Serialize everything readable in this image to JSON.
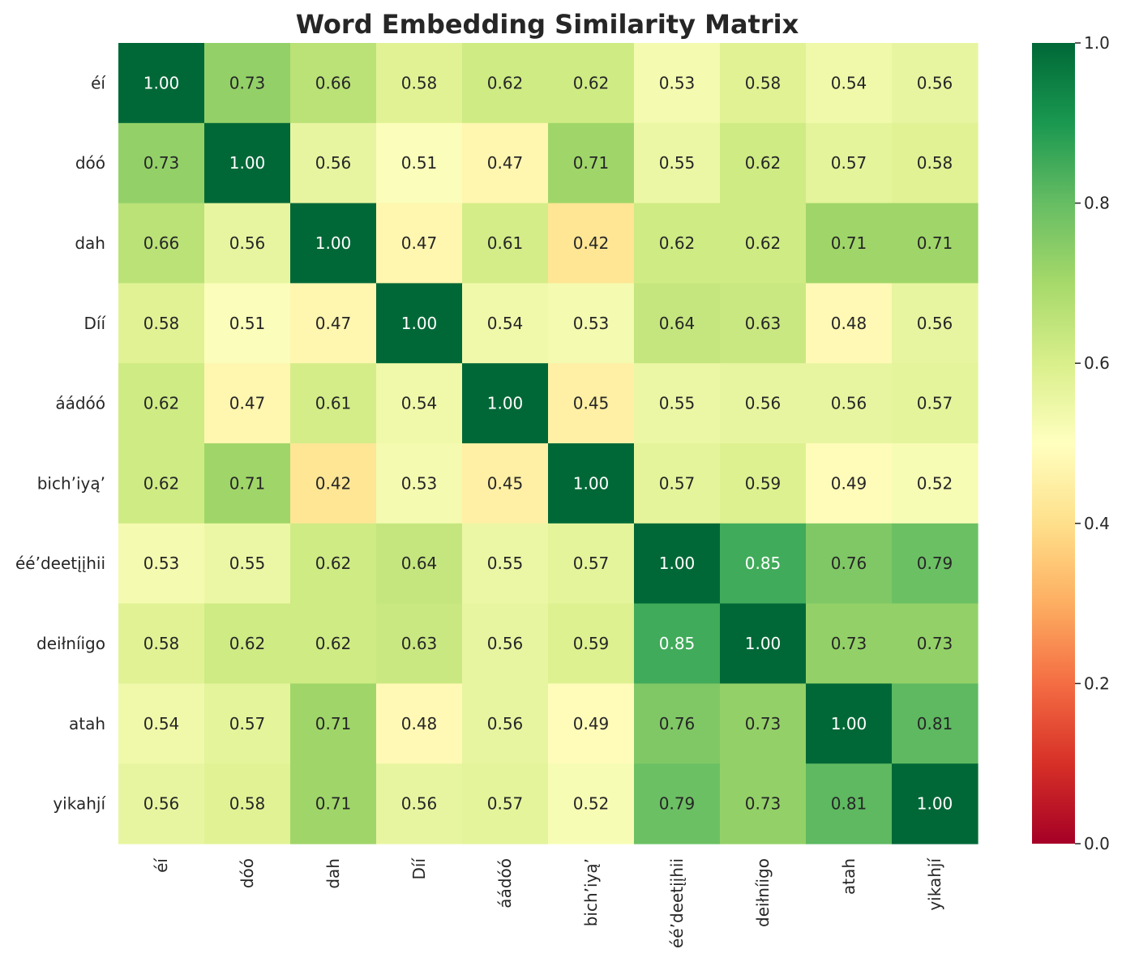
{
  "chart_data": {
    "type": "heatmap",
    "title": "Word Embedding Similarity Matrix",
    "xlabel": "",
    "ylabel": "",
    "labels": [
      "éí",
      "dóó",
      "dah",
      "Díí",
      "áádóó",
      "bich’iyą’",
      "éé’deetįįhii",
      "deiłníigo",
      "atah",
      "yikahjí"
    ],
    "values": [
      [
        1.0,
        0.73,
        0.66,
        0.58,
        0.62,
        0.62,
        0.53,
        0.58,
        0.54,
        0.56
      ],
      [
        0.73,
        1.0,
        0.56,
        0.51,
        0.47,
        0.71,
        0.55,
        0.62,
        0.57,
        0.58
      ],
      [
        0.66,
        0.56,
        1.0,
        0.47,
        0.61,
        0.42,
        0.62,
        0.62,
        0.71,
        0.71
      ],
      [
        0.58,
        0.51,
        0.47,
        1.0,
        0.54,
        0.53,
        0.64,
        0.63,
        0.48,
        0.56
      ],
      [
        0.62,
        0.47,
        0.61,
        0.54,
        1.0,
        0.45,
        0.55,
        0.56,
        0.56,
        0.57
      ],
      [
        0.62,
        0.71,
        0.42,
        0.53,
        0.45,
        1.0,
        0.57,
        0.59,
        0.49,
        0.52
      ],
      [
        0.53,
        0.55,
        0.62,
        0.64,
        0.55,
        0.57,
        1.0,
        0.85,
        0.76,
        0.79
      ],
      [
        0.58,
        0.62,
        0.62,
        0.63,
        0.56,
        0.59,
        0.85,
        1.0,
        0.73,
        0.73
      ],
      [
        0.54,
        0.57,
        0.71,
        0.48,
        0.56,
        0.49,
        0.76,
        0.73,
        1.0,
        0.81
      ],
      [
        0.56,
        0.58,
        0.71,
        0.56,
        0.57,
        0.52,
        0.79,
        0.73,
        0.81,
        1.0
      ]
    ],
    "value_format": "0.00",
    "colormap": "RdYlGn",
    "vmin": 0.0,
    "vmax": 1.0,
    "colorbar_ticks": [
      "0.0",
      "0.2",
      "0.4",
      "0.6",
      "0.8",
      "1.0"
    ],
    "colormap_stops": [
      "#a50026",
      "#d73027",
      "#f46d43",
      "#fdae61",
      "#fee08b",
      "#ffffbf",
      "#d9ef8b",
      "#a6d96a",
      "#66bd63",
      "#1a9850",
      "#006837"
    ],
    "grid": false,
    "legend": "colorbar-right"
  }
}
